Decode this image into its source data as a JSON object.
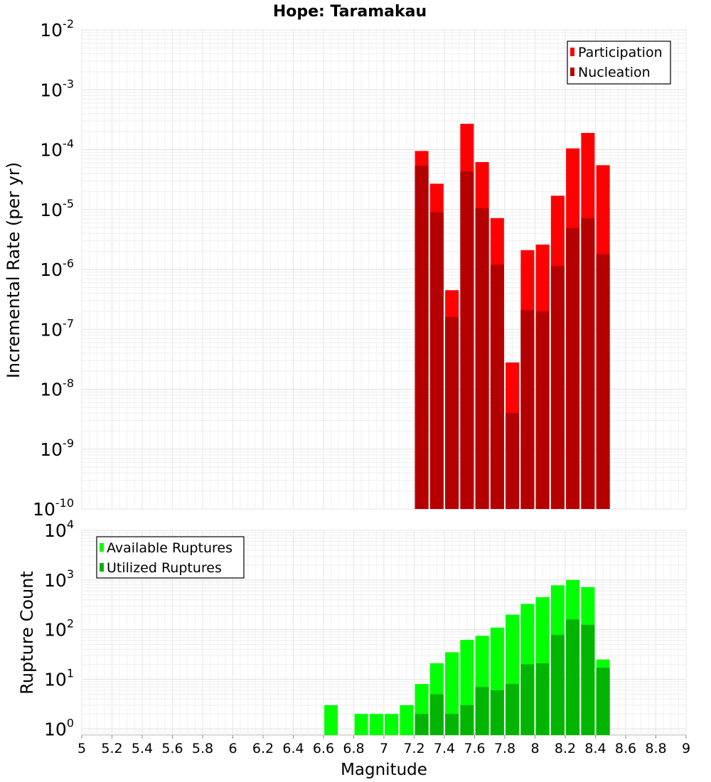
{
  "chart_data": [
    {
      "type": "bar",
      "title": "Hope: Taramakau",
      "xlabel": "",
      "ylabel": "Incremental Rate (per yr)",
      "xlim": [
        5,
        9
      ],
      "ylim": [
        1e-10,
        0.01
      ],
      "yscale": "log",
      "grid": true,
      "legend_position": "top-right",
      "x": [
        7.25,
        7.35,
        7.45,
        7.55,
        7.65,
        7.75,
        7.85,
        7.95,
        8.05,
        8.15,
        8.25,
        8.35,
        8.45
      ],
      "series": [
        {
          "name": "Participation",
          "color": "#ff0000",
          "values": [
            9.5e-05,
            2.7e-05,
            4.5e-07,
            0.00027,
            6.2e-05,
            7.2e-06,
            2.8e-08,
            2.1e-06,
            2.6e-06,
            1.7e-05,
            0.000105,
            0.00019,
            5.5e-05
          ]
        },
        {
          "name": "Nucleation",
          "color": "#b40000",
          "values": [
            5.4e-05,
            9e-06,
            1.6e-07,
            4.3e-05,
            1.05e-05,
            1.2e-06,
            4e-09,
            2.1e-07,
            2e-07,
            1.15e-06,
            4.9e-06,
            7.2e-06,
            1.8e-06
          ]
        }
      ]
    },
    {
      "type": "bar",
      "title": "",
      "xlabel": "Magnitude",
      "ylabel": "Rupture Count",
      "xlim": [
        5,
        9
      ],
      "ylim": [
        0.75,
        10000
      ],
      "yscale": "log",
      "grid": true,
      "legend_position": "top-left",
      "x": [
        6.65,
        6.75,
        6.85,
        6.95,
        7.05,
        7.15,
        7.25,
        7.35,
        7.45,
        7.55,
        7.65,
        7.75,
        7.85,
        7.95,
        8.05,
        8.15,
        8.25,
        8.35,
        8.45
      ],
      "series": [
        {
          "name": "Available Ruptures",
          "color": "#00ff00",
          "values": [
            3,
            0,
            2,
            2,
            2,
            3,
            8,
            21,
            35,
            62,
            75,
            110,
            200,
            330,
            450,
            780,
            1000,
            720,
            25
          ]
        },
        {
          "name": "Utilized Ruptures",
          "color": "#00b400",
          "values": [
            0,
            0,
            0,
            0,
            0,
            0,
            2,
            5,
            2,
            3,
            7,
            6,
            8,
            20,
            21,
            78,
            160,
            125,
            17
          ]
        }
      ]
    }
  ],
  "axes": {
    "x_ticks": [
      "5",
      "5.2",
      "5.4",
      "5.6",
      "5.8",
      "6",
      "6.2",
      "6.4",
      "6.6",
      "6.8",
      "7",
      "7.2",
      "7.4",
      "7.6",
      "7.8",
      "8",
      "8.2",
      "8.4",
      "8.6",
      "8.8",
      "9"
    ],
    "top_y_exponents": [
      "-2",
      "-3",
      "-4",
      "-5",
      "-6",
      "-7",
      "-8",
      "-9",
      "-10"
    ],
    "bottom_y_exponents": [
      "4",
      "3",
      "2",
      "1",
      "0"
    ],
    "y_base": "10"
  }
}
